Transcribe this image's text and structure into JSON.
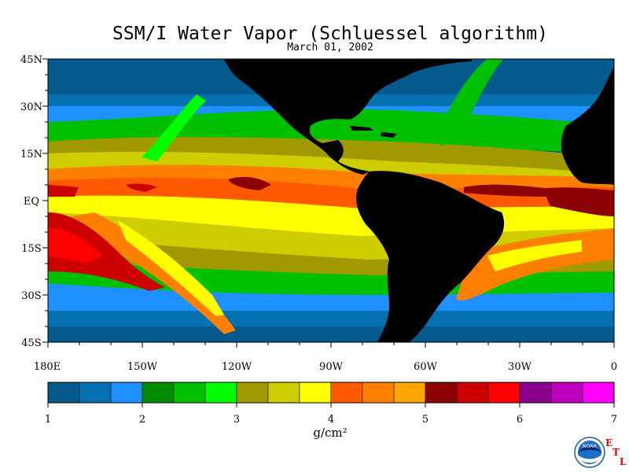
{
  "title": "SSM/I Water Vapor (Schluessel algorithm)",
  "subtitle": "March 01, 2002",
  "lat_labels": [
    "45N",
    "30N",
    "15N",
    "EQ",
    "15S",
    "30S",
    "45S"
  ],
  "lon_labels": [
    "180E",
    "150W",
    "120W",
    "90W",
    "60W",
    "30W",
    "0"
  ],
  "colorbar": {
    "ticks": [
      "1",
      "2",
      "3",
      "4",
      "5",
      "6",
      "7"
    ],
    "unit": "g/cm²",
    "colors": [
      "#045a8c",
      "#0570b0",
      "#1e90ff",
      "#008b00",
      "#00c000",
      "#00ff00",
      "#a09a00",
      "#cdcd00",
      "#ffff00",
      "#ff5a00",
      "#ff8000",
      "#ffa500",
      "#8b0000",
      "#cd0000",
      "#ff0000",
      "#8b008b",
      "#c000c0",
      "#ff00ff"
    ]
  },
  "logo": {
    "text": "NOAA",
    "letters": [
      "E",
      "T",
      "L"
    ]
  },
  "colors": {
    "land": "#000000",
    "background": "#ffffff"
  }
}
